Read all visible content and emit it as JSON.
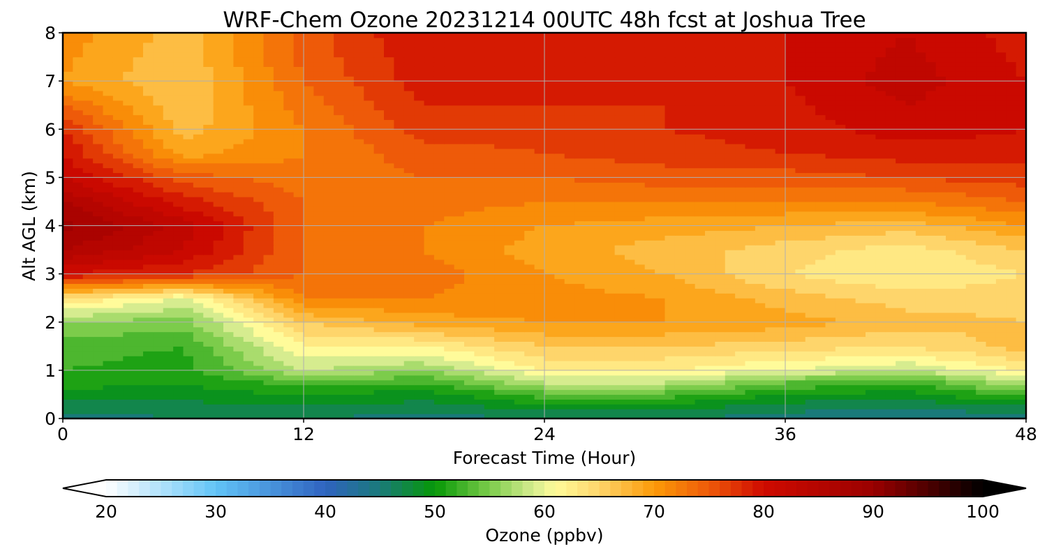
{
  "chart_data": {
    "type": "heatmap",
    "title": "WRF-Chem Ozone  20231214 00UTC 48h fcst at Joshua Tree",
    "xlabel": "Forecast Time (Hour)",
    "ylabel": "Alt AGL (km)",
    "xlim": [
      0,
      48
    ],
    "ylim": [
      0,
      8
    ],
    "xticks": [
      0,
      12,
      24,
      36,
      48
    ],
    "yticks": [
      0,
      1,
      2,
      3,
      4,
      5,
      6,
      7,
      8
    ],
    "grid": true,
    "x": [
      0,
      6,
      12,
      18,
      24,
      30,
      36,
      42,
      48
    ],
    "y": [
      0,
      0.25,
      0.5,
      0.75,
      1,
      1.5,
      2,
      2.5,
      3,
      3.5,
      4,
      4.5,
      5,
      5.5,
      6,
      7,
      8
    ],
    "z": [
      [
        45,
        46,
        46,
        45,
        46,
        46,
        45,
        44,
        45
      ],
      [
        47,
        47,
        48,
        47,
        49,
        49,
        47,
        46,
        48
      ],
      [
        49,
        49,
        50,
        49,
        53,
        53,
        50,
        49,
        53
      ],
      [
        51,
        50,
        53,
        52,
        58,
        58,
        54,
        52,
        58
      ],
      [
        52,
        51,
        58,
        56,
        62,
        62,
        60,
        58,
        62
      ],
      [
        53,
        52,
        62,
        62,
        66,
        66,
        65,
        64,
        67
      ],
      [
        56,
        55,
        66,
        69,
        70,
        70,
        69,
        67,
        66
      ],
      [
        64,
        60,
        72,
        72,
        71,
        70,
        67,
        65,
        65
      ],
      [
        80,
        78,
        74,
        73,
        70,
        68,
        64,
        62,
        64
      ],
      [
        86,
        82,
        74,
        72,
        69,
        67,
        65,
        63,
        66
      ],
      [
        89,
        83,
        74,
        72,
        70,
        69,
        68,
        67,
        70
      ],
      [
        86,
        79,
        74,
        73,
        72,
        72,
        72,
        72,
        74
      ],
      [
        82,
        75,
        73,
        74,
        74,
        75,
        75,
        76,
        77
      ],
      [
        80,
        69,
        72,
        75,
        76,
        77,
        78,
        79,
        79
      ],
      [
        78,
        67,
        72,
        77,
        77,
        78,
        79,
        81,
        80
      ],
      [
        70,
        66,
        74,
        79,
        79,
        78,
        80,
        83,
        80
      ],
      [
        71,
        67,
        75,
        80,
        79,
        79,
        80,
        82,
        79
      ]
    ],
    "colorbar": {
      "label": "Ozone  (ppbv)",
      "min": 20,
      "max": 100,
      "ticks": [
        20,
        30,
        40,
        50,
        60,
        70,
        80,
        90,
        100
      ],
      "extend": "both",
      "stops": [
        {
          "v": 20,
          "c": "#ffffff"
        },
        {
          "v": 30,
          "c": "#62c4f7"
        },
        {
          "v": 40,
          "c": "#2f63c0"
        },
        {
          "v": 45,
          "c": "#1a7a7a"
        },
        {
          "v": 50,
          "c": "#069806"
        },
        {
          "v": 55,
          "c": "#7ccc4b"
        },
        {
          "v": 59,
          "c": "#d6ec8f"
        },
        {
          "v": 61,
          "c": "#fffb9a"
        },
        {
          "v": 65,
          "c": "#fed56b"
        },
        {
          "v": 70,
          "c": "#fc9a08"
        },
        {
          "v": 75,
          "c": "#ee5a09"
        },
        {
          "v": 80,
          "c": "#cf0a00"
        },
        {
          "v": 90,
          "c": "#9a0000"
        },
        {
          "v": 100,
          "c": "#000000"
        }
      ],
      "under_color": "#ffffff",
      "over_color": "#000000"
    }
  }
}
